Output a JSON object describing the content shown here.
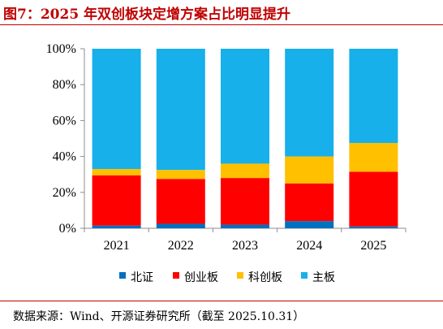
{
  "title": "图7：2025 年双创板块定增方案占比明显提升",
  "source": "数据来源：Wind、开源证券研究所（截至 2025.10.31）",
  "chart_data": {
    "type": "bar",
    "stacked": true,
    "categories": [
      "2021",
      "2022",
      "2023",
      "2024",
      "2025"
    ],
    "series": [
      {
        "name": "北证",
        "color": "#0070c0",
        "values": [
          1.5,
          2.5,
          2.0,
          4.0,
          1.0
        ]
      },
      {
        "name": "创业板",
        "color": "#ff0000",
        "values": [
          28.0,
          25.0,
          26.0,
          21.0,
          30.5
        ]
      },
      {
        "name": "科创板",
        "color": "#ffc000",
        "values": [
          3.5,
          5.0,
          8.0,
          15.0,
          16.0
        ]
      },
      {
        "name": "主板",
        "color": "#17b0ea",
        "values": [
          67.0,
          67.5,
          64.0,
          60.0,
          52.5
        ]
      }
    ],
    "ylim": [
      0,
      100
    ],
    "yticks": [
      "0%",
      "20%",
      "40%",
      "60%",
      "80%",
      "100%"
    ],
    "grid": false,
    "legend_position": "bottom"
  }
}
